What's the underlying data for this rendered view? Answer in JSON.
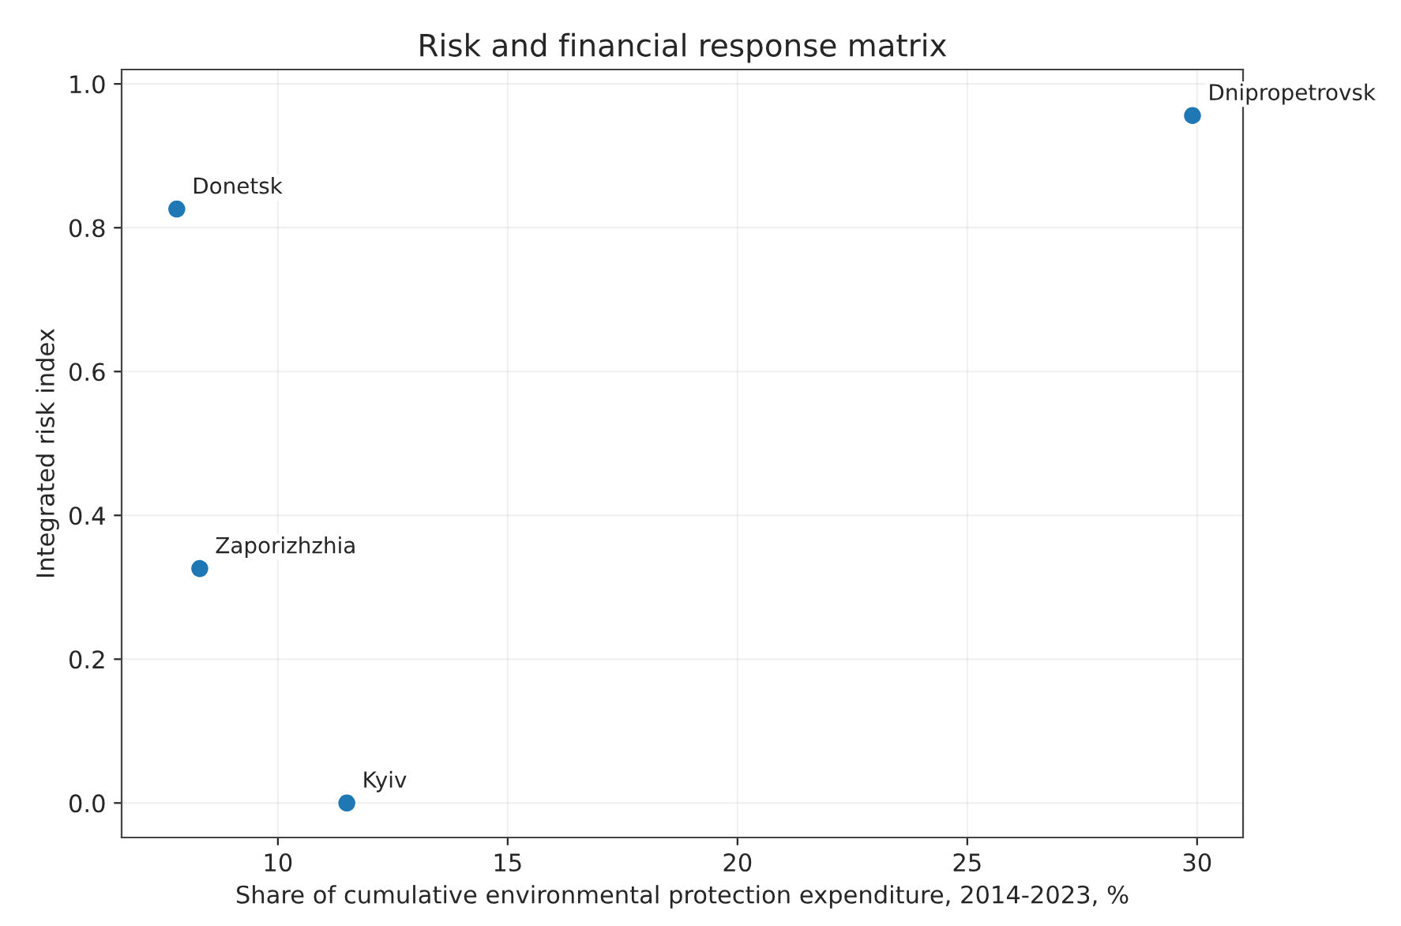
{
  "chart_data": {
    "type": "scatter",
    "title": "Risk and financial response matrix",
    "xlabel": "Share of cumulative environmental protection expenditure, 2014-2023, %",
    "ylabel": "Integrated risk index",
    "x": [
      7.8,
      29.9,
      8.3,
      11.5
    ],
    "series": [
      {
        "color": "#1f77b4",
        "values": [
          0.826,
          0.956,
          0.326,
          0.0
        ]
      }
    ],
    "annotations": [
      {
        "text": "Donetsk",
        "x": 7.8,
        "y": 0.826
      },
      {
        "text": "Dnipropetrovsk",
        "x": 29.9,
        "y": 0.956
      },
      {
        "text": "Zaporizhzhia",
        "x": 8.3,
        "y": 0.326
      },
      {
        "text": "Kyiv",
        "x": 11.5,
        "y": 0.0
      }
    ],
    "xlim": [
      6.6,
      31.0
    ],
    "ylim": [
      -0.048,
      1.02
    ],
    "xticks": [
      10,
      15,
      20,
      25,
      30
    ],
    "yticks": [
      {
        "value": 0,
        "label": "0.0"
      },
      {
        "value": 0.2,
        "label": "0.2"
      },
      {
        "value": 0.4,
        "label": "0.4"
      },
      {
        "value": 0.6,
        "label": "0.6"
      },
      {
        "value": 0.8,
        "label": "0.8"
      },
      {
        "value": 1.0,
        "label": "1.0"
      }
    ],
    "grid": true,
    "marker": "circle"
  }
}
